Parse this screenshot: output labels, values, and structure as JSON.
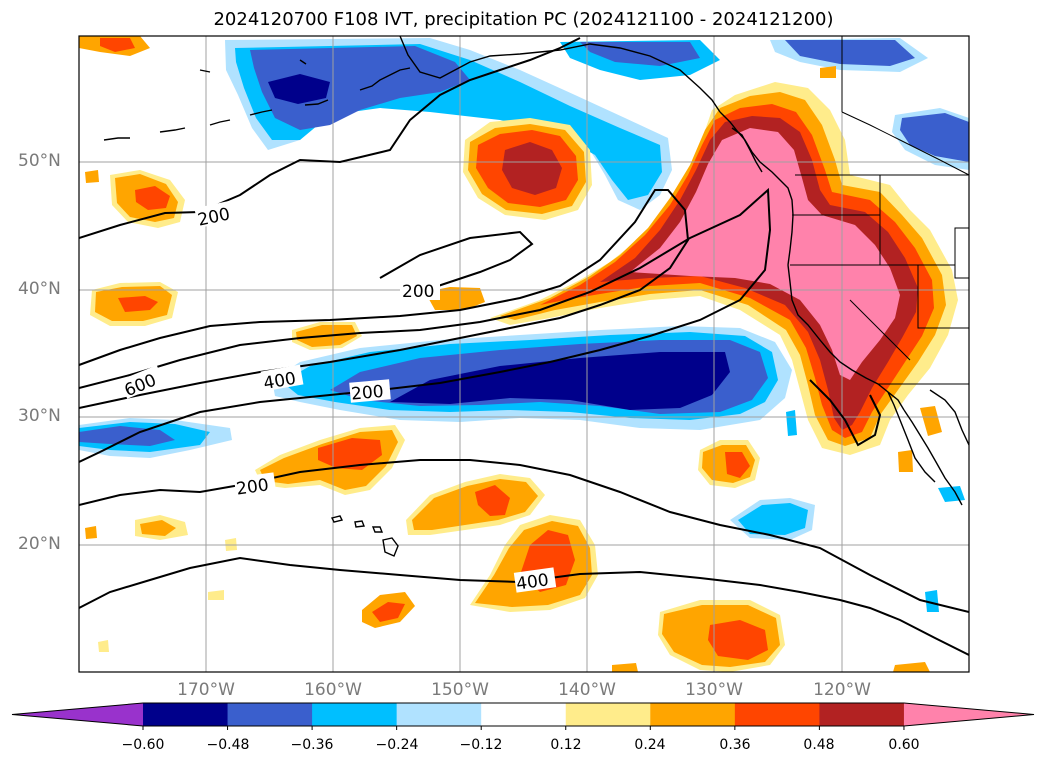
{
  "title": "2024120700 F108 IVT, precipitation PC (2024121100 - 2024121200)",
  "latitude_labels": [
    "50°N",
    "40°N",
    "30°N",
    "20°N"
  ],
  "longitude_labels": [
    "170°W",
    "160°W",
    "150°W",
    "140°W",
    "130°W",
    "120°W"
  ],
  "ivt_contour_labels": [
    "200",
    "200",
    "600",
    "400",
    "200",
    "200",
    "400"
  ],
  "colorbar": {
    "tick_labels": [
      "−0.60",
      "−0.48",
      "−0.36",
      "−0.24",
      "−0.12",
      "0.12",
      "0.24",
      "0.36",
      "0.48",
      "0.60"
    ],
    "colors": [
      "#9932cc",
      "#00008b",
      "#3a5fcd",
      "#00bfff",
      "#b0e2ff",
      "#ffffff",
      "#ffec8b",
      "#ffa500",
      "#ff4500",
      "#b22222",
      "#ff82ab"
    ]
  },
  "colors": {
    "grid": "#a0a0a0",
    "coast": "#000000",
    "contour": "#000000"
  }
}
